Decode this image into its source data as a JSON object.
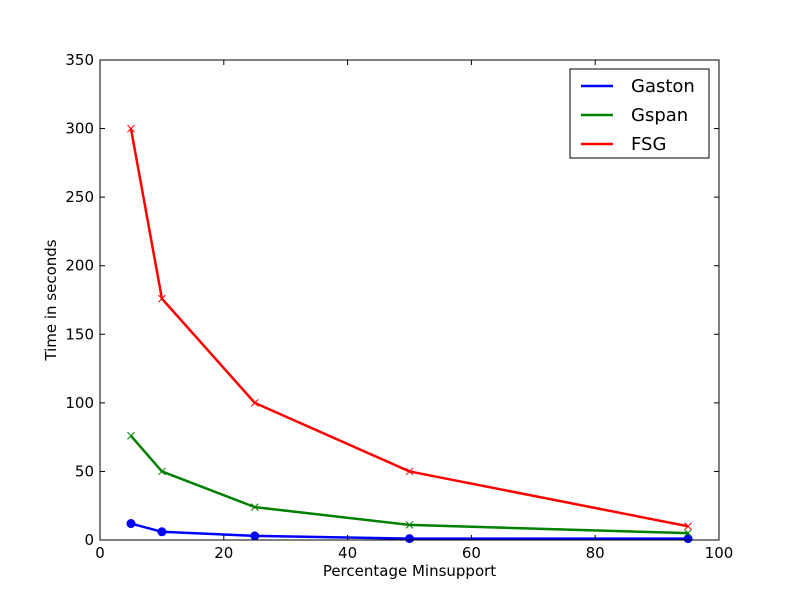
{
  "chart_data": {
    "type": "line",
    "title": "",
    "xlabel": "Percentage Minsupport",
    "ylabel": "Time in seconds",
    "xlim": [
      0,
      100
    ],
    "ylim": [
      0,
      350
    ],
    "xticks": [
      0,
      20,
      40,
      60,
      80,
      100
    ],
    "yticks": [
      0,
      50,
      100,
      150,
      200,
      250,
      300,
      350
    ],
    "grid": false,
    "legend_position": "top-right",
    "series": [
      {
        "name": "Gaston",
        "color": "#0000ff",
        "marker": "circle",
        "x": [
          5,
          10,
          25,
          50,
          95
        ],
        "y": [
          12,
          6,
          3,
          1,
          1
        ]
      },
      {
        "name": "Gspan",
        "color": "#008000",
        "marker": "x",
        "x": [
          5,
          10,
          25,
          50,
          95
        ],
        "y": [
          76,
          50,
          24,
          11,
          5
        ]
      },
      {
        "name": "FSG",
        "color": "#ff0000",
        "marker": "x",
        "x": [
          5,
          10,
          25,
          50,
          95
        ],
        "y": [
          300,
          176,
          100,
          50,
          10
        ]
      }
    ]
  }
}
